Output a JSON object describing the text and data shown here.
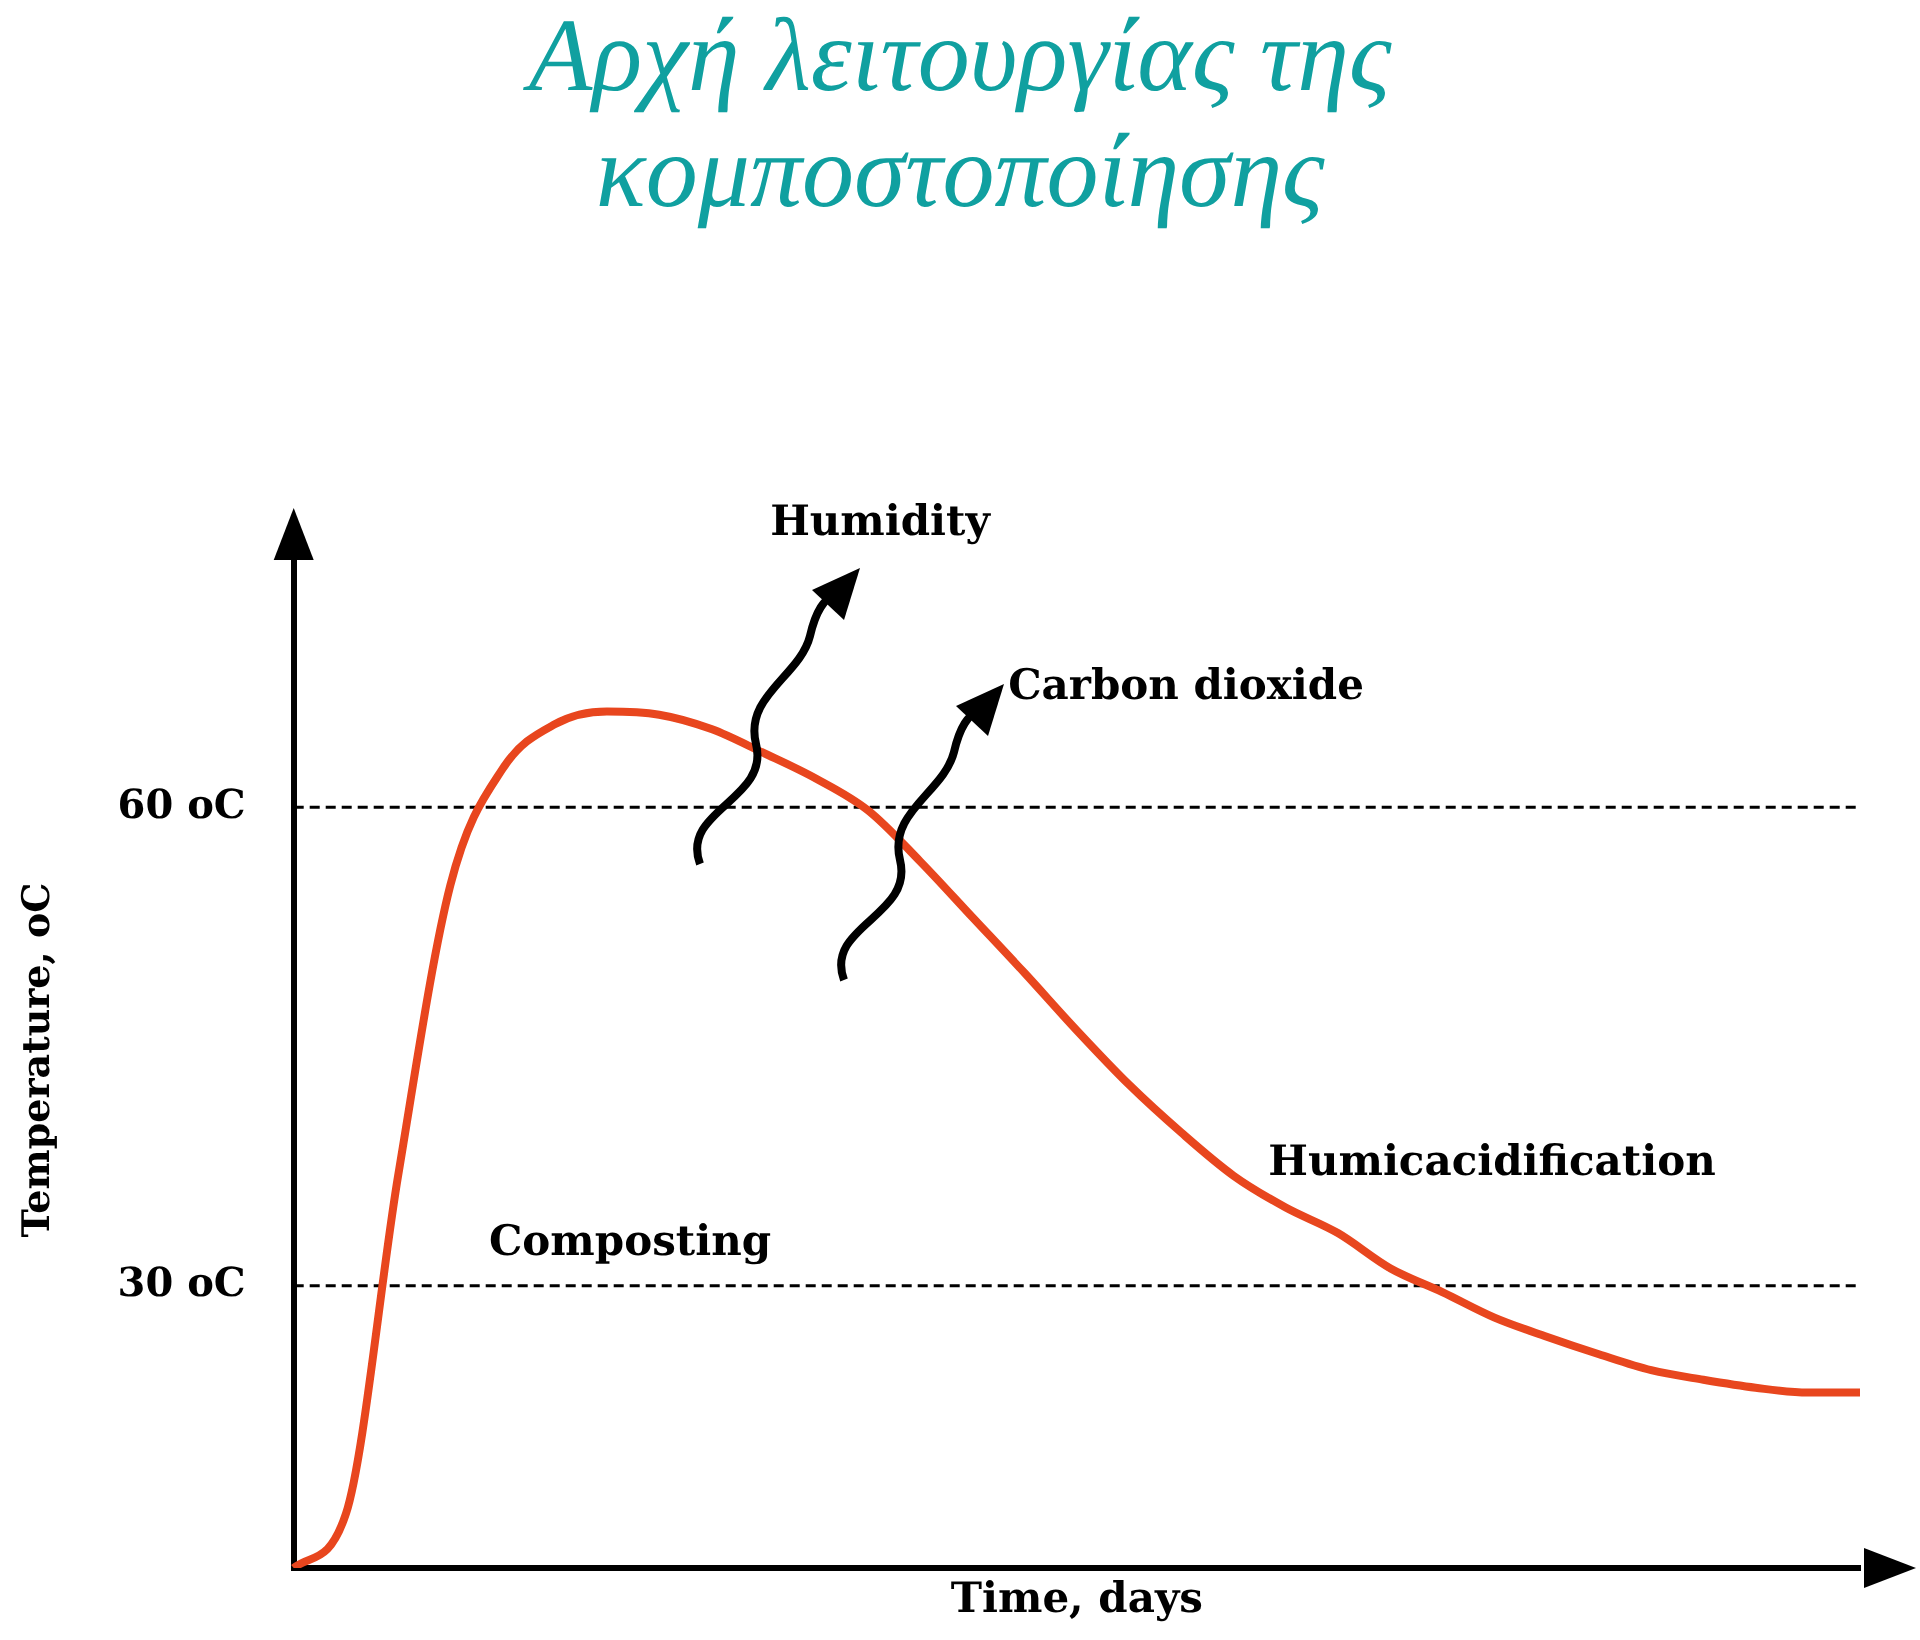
{
  "chart_data": {
    "type": "line",
    "title": "Αρχή λειτουργίας της κομποστοποίησης",
    "xlabel": "Time, days",
    "ylabel": "Temperature, oC",
    "categories": [
      null,
      null,
      null,
      null,
      null,
      null,
      null,
      null,
      null,
      null,
      null,
      null,
      null,
      null,
      null,
      null,
      null,
      null,
      null,
      null,
      null,
      null,
      null,
      null,
      null,
      null,
      null,
      null,
      null,
      null,
      null
    ],
    "values": [
      12.3,
      15.7,
      36.9,
      55.1,
      62.4,
      65.2,
      66.0,
      65.8,
      64.9,
      63.4,
      61.8,
      59.8,
      56.6,
      53.1,
      49.6,
      46.0,
      42.6,
      39.6,
      36.9,
      34.9,
      33.3,
      31.1,
      29.6,
      28.0,
      26.8,
      25.7,
      24.7,
      24.1,
      23.6,
      23.3,
      23.3
    ],
    "color": "#e8461e",
    "marker": "none",
    "line_style": "solid",
    "ylim": [
      12.3,
      76
    ],
    "yticks": [
      {
        "value": 30,
        "label": "30 oC"
      },
      {
        "value": 60,
        "label": "60 oC"
      }
    ],
    "tick_labels": "y",
    "legend": false,
    "ref_lines": [
      {
        "axis": "y",
        "value": 60,
        "line_style": "dashed",
        "color": "#000000"
      },
      {
        "axis": "y",
        "value": 30,
        "line_style": "dashed",
        "color": "#000000"
      }
    ],
    "annotations": [
      "Humidity",
      "Carbon dioxide",
      "Humicacidification",
      "Composting"
    ]
  }
}
